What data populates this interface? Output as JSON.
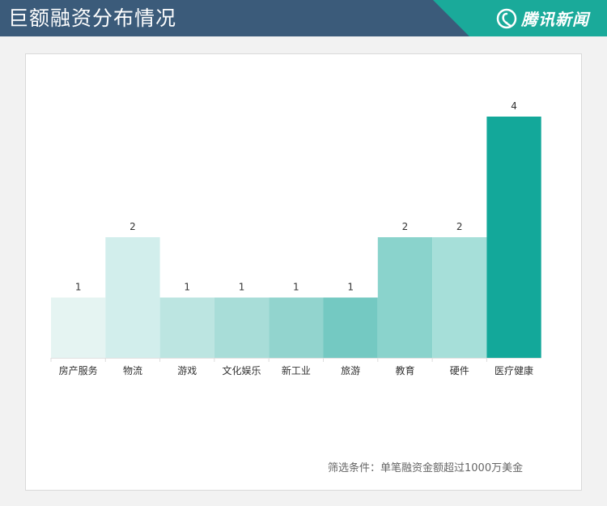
{
  "header": {
    "title": "巨额融资分布情况",
    "brand": "腾讯新闻",
    "brand_icon": "tencent-news-logo-icon",
    "bg_color": "#3b5b7a",
    "accent_color": "#1aaa9a"
  },
  "footnote": "筛选条件：单笔融资金额超过1000万美金",
  "chart_data": {
    "type": "bar",
    "categories": [
      "房产服务",
      "物流",
      "游戏",
      "文化娱乐",
      "新工业",
      "旅游",
      "教育",
      "硬件",
      "医疗健康"
    ],
    "values": [
      1,
      2,
      1,
      1,
      1,
      1,
      2,
      2,
      4
    ],
    "colors": [
      "#e5f4f2",
      "#d2eeec",
      "#bce5e1",
      "#a8ddd8",
      "#92d4ce",
      "#74c9c2",
      "#8ad3cc",
      "#a6dfd9",
      "#13a89a"
    ],
    "title": "",
    "xlabel": "",
    "ylabel": "",
    "ylim": [
      0,
      4
    ],
    "grid": false,
    "legend": "none"
  }
}
